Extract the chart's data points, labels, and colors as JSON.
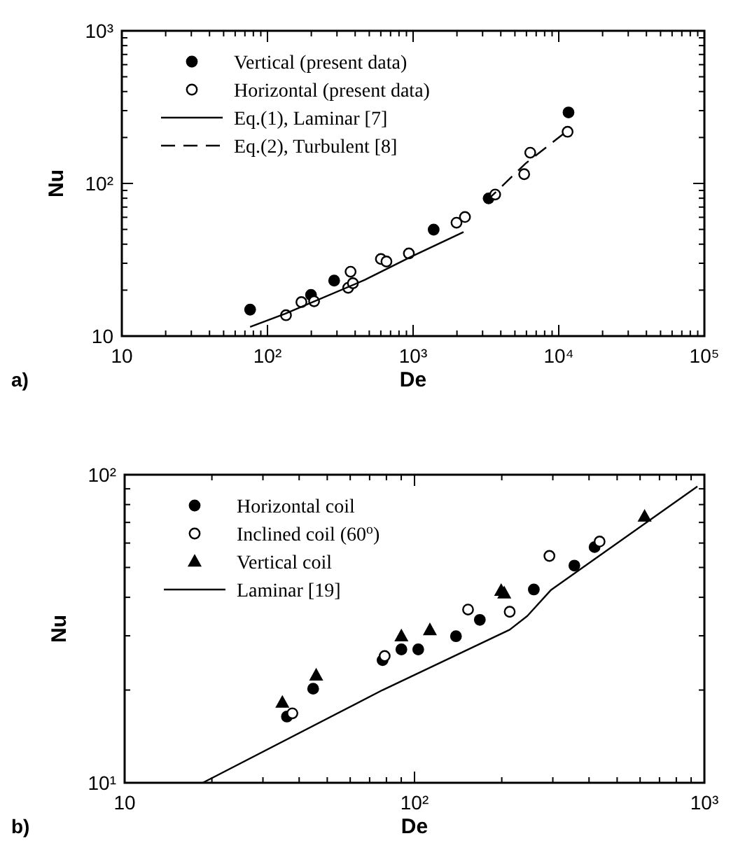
{
  "chart_data": [
    {
      "type": "scatter",
      "xlabel": "De",
      "ylabel": "Nu",
      "log": "xy",
      "xlim": [
        10,
        100000
      ],
      "ylim": [
        10,
        1000
      ],
      "xticks": [
        10,
        {
          "value": 100,
          "label": "10²"
        },
        {
          "value": 1000,
          "label": "10³"
        },
        {
          "value": 10000,
          "label": "10⁴"
        },
        {
          "value": 100000,
          "label": "10⁵"
        }
      ],
      "yticks": [
        10,
        {
          "value": 100,
          "label": "10²"
        },
        {
          "value": 1000,
          "label": "10³"
        }
      ],
      "legend": "top left",
      "grid": false,
      "annotations": [
        "a)"
      ],
      "series": [
        {
          "name": "Vertical (present data)",
          "color": "#000000",
          "marker": "circle",
          "x": [
            76,
            199,
            287,
            1384,
            3300,
            11670
          ],
          "values": [
            14.9,
            18.6,
            23.1,
            49.8,
            79.8,
            292
          ]
        },
        {
          "name": "Horizontal (present data)",
          "color": "#ffffff",
          "marker": "circle",
          "x": [
            134,
            171,
            209,
            358,
            386,
            372,
            601,
            656,
            935,
            1986,
            2270,
            3660,
            5790,
            6370,
            11500
          ],
          "values": [
            13.7,
            16.7,
            16.9,
            20.7,
            22.2,
            26.4,
            32.0,
            30.8,
            34.8,
            55.3,
            60.3,
            84.6,
            115,
            159,
            218
          ]
        },
        {
          "name": "Eq.(1), Laminar [7]",
          "type": "line",
          "color": "#000000",
          "line_style": "solid",
          "marker": "none",
          "x": [
            76,
            132,
            464,
            970,
            2220
          ],
          "values": [
            11.5,
            14.0,
            23.3,
            33.1,
            48.1
          ]
        },
        {
          "name": "Eq.(2), Turbulent [8]",
          "type": "line",
          "color": "#000000",
          "line_style": "dashed",
          "marker": "none",
          "x": [
            3160,
            5910,
            11500
          ],
          "values": [
            76,
            135,
            222
          ]
        }
      ]
    },
    {
      "type": "scatter",
      "xlabel": "De",
      "ylabel": "Nu",
      "log": "xy",
      "xlim": [
        10,
        1000
      ],
      "ylim": [
        10,
        100
      ],
      "xticks": [
        10,
        {
          "value": 100,
          "label": "10²"
        },
        {
          "value": 1000,
          "label": "10³"
        }
      ],
      "yticks": [
        {
          "value": 10,
          "label": "10¹"
        },
        {
          "value": 100,
          "label": "10²"
        }
      ],
      "legend": "top left",
      "grid": false,
      "annotations": [
        "b)"
      ],
      "series": [
        {
          "name": "Horizontal coil",
          "color": "#000000",
          "marker": "circle",
          "x": [
            36.3,
            44.7,
            77.6,
            90.1,
            103,
            139,
            168,
            258,
            356,
            418
          ],
          "values": [
            16.4,
            20.2,
            25.0,
            27.1,
            27.1,
            29.9,
            33.8,
            42.4,
            50.7,
            58.2
          ]
        },
        {
          "name": "Inclined coil (60$^{o}$)",
          "color": "#ffffff",
          "marker": "circle",
          "x": [
            37.9,
            78.9,
            153,
            213,
            292,
            435
          ],
          "values": [
            16.8,
            25.8,
            36.5,
            35.9,
            54.5,
            60.7
          ]
        },
        {
          "name": "Vertical coil",
          "color": "#000000",
          "marker": "triangle",
          "x": [
            35.0,
            45.8,
            90.1,
            113,
            199,
            204,
            622
          ],
          "values": [
            18.2,
            22.3,
            29.9,
            31.3,
            42.0,
            41.2,
            73.1
          ]
        },
        {
          "name": "Laminar [19]",
          "type": "line",
          "color": "#000000",
          "line_style": "solid",
          "marker": "none",
          "x": [
            18.6,
            77.6,
            213,
            245,
            296,
            946
          ],
          "values": [
            10,
            20.0,
            31.4,
            34.8,
            42.3,
            91.6
          ]
        }
      ]
    }
  ]
}
